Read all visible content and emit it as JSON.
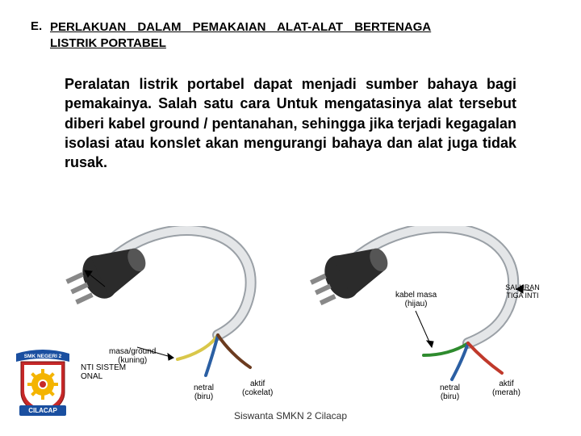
{
  "heading": {
    "marker": "E.",
    "line1": "PERLAKUAN DALAM PEMAKAIAN ALAT-ALAT BERTENAGA",
    "line2": "LISTRIK PORTABEL"
  },
  "paragraph": "Peralatan listrik portabel dapat menjadi sumber bahaya bagi pemakainya. Salah satu cara Untuk mengatasinya alat tersebut diberi kabel ground / pentanahan, sehingga jika terjadi kegagalan isolasi atau konslet akan mengurangi bahaya dan alat juga tidak rusak.",
  "footer": "Siswanta SMKN 2 Cilacap",
  "figure": {
    "left": {
      "plug_fill": "#2b2b2b",
      "cable_color": "#9aa0a6",
      "labels": {
        "ground": "masa/ground\n(kuning)",
        "neutral": "netral\n(biru)",
        "active": "aktif\n(cokelat)",
        "system": "NTI SISTEM\nONAL"
      },
      "wire_colors": {
        "ground": "#d9c74a",
        "neutral": "#2b5fa3",
        "active": "#6b3b1f"
      }
    },
    "right": {
      "plug_fill": "#2b2b2b",
      "cable_color": "#9aa0a6",
      "labels": {
        "ground": "kabel masa\n(hijau)",
        "neutral": "netral\n(biru)",
        "active": "aktif\n(merah)",
        "core": "SALURAN TIGA INTI"
      },
      "wire_colors": {
        "ground": "#2e8b2e",
        "neutral": "#2b5fa3",
        "active": "#c0392b"
      }
    }
  },
  "logo": {
    "ribbon_top_text": "SMK NEGERI 2",
    "ribbon_bottom_text": "CILACAP",
    "ribbon_top_bg": "#1a4fa0",
    "ribbon_bottom_bg": "#1a4fa0",
    "shield_outer": "#c62828",
    "shield_inner": "#ffffff",
    "gear_color": "#f4b400",
    "text_color": "#ffffff"
  },
  "colors": {
    "background": "#ffffff",
    "text": "#000000",
    "footer": "#333333"
  }
}
